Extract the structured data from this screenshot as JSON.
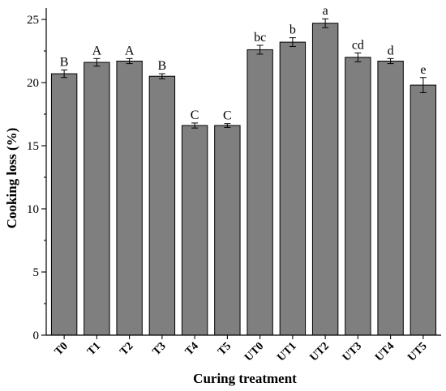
{
  "chart_data": {
    "type": "bar",
    "title": "",
    "xlabel": "Curing treatment",
    "ylabel": "Cooking loss (%)",
    "ylim": [
      0,
      25
    ],
    "yticks": [
      0,
      5,
      10,
      15,
      20,
      25
    ],
    "bar_color": "#7f7f7f",
    "categories": [
      "T0",
      "T1",
      "T2",
      "T3",
      "T4",
      "T5",
      "UT0",
      "UT1",
      "UT2",
      "UT3",
      "UT4",
      "UT5"
    ],
    "values": [
      20.7,
      21.6,
      21.7,
      20.5,
      16.6,
      16.6,
      22.6,
      23.2,
      24.7,
      22.0,
      21.7,
      19.8
    ],
    "errors": [
      0.3,
      0.3,
      0.2,
      0.2,
      0.2,
      0.15,
      0.35,
      0.35,
      0.35,
      0.35,
      0.2,
      0.6
    ],
    "labels": [
      "B",
      "A",
      "A",
      "B",
      "C",
      "C",
      "bc",
      "b",
      "a",
      "cd",
      "d",
      "e"
    ]
  }
}
